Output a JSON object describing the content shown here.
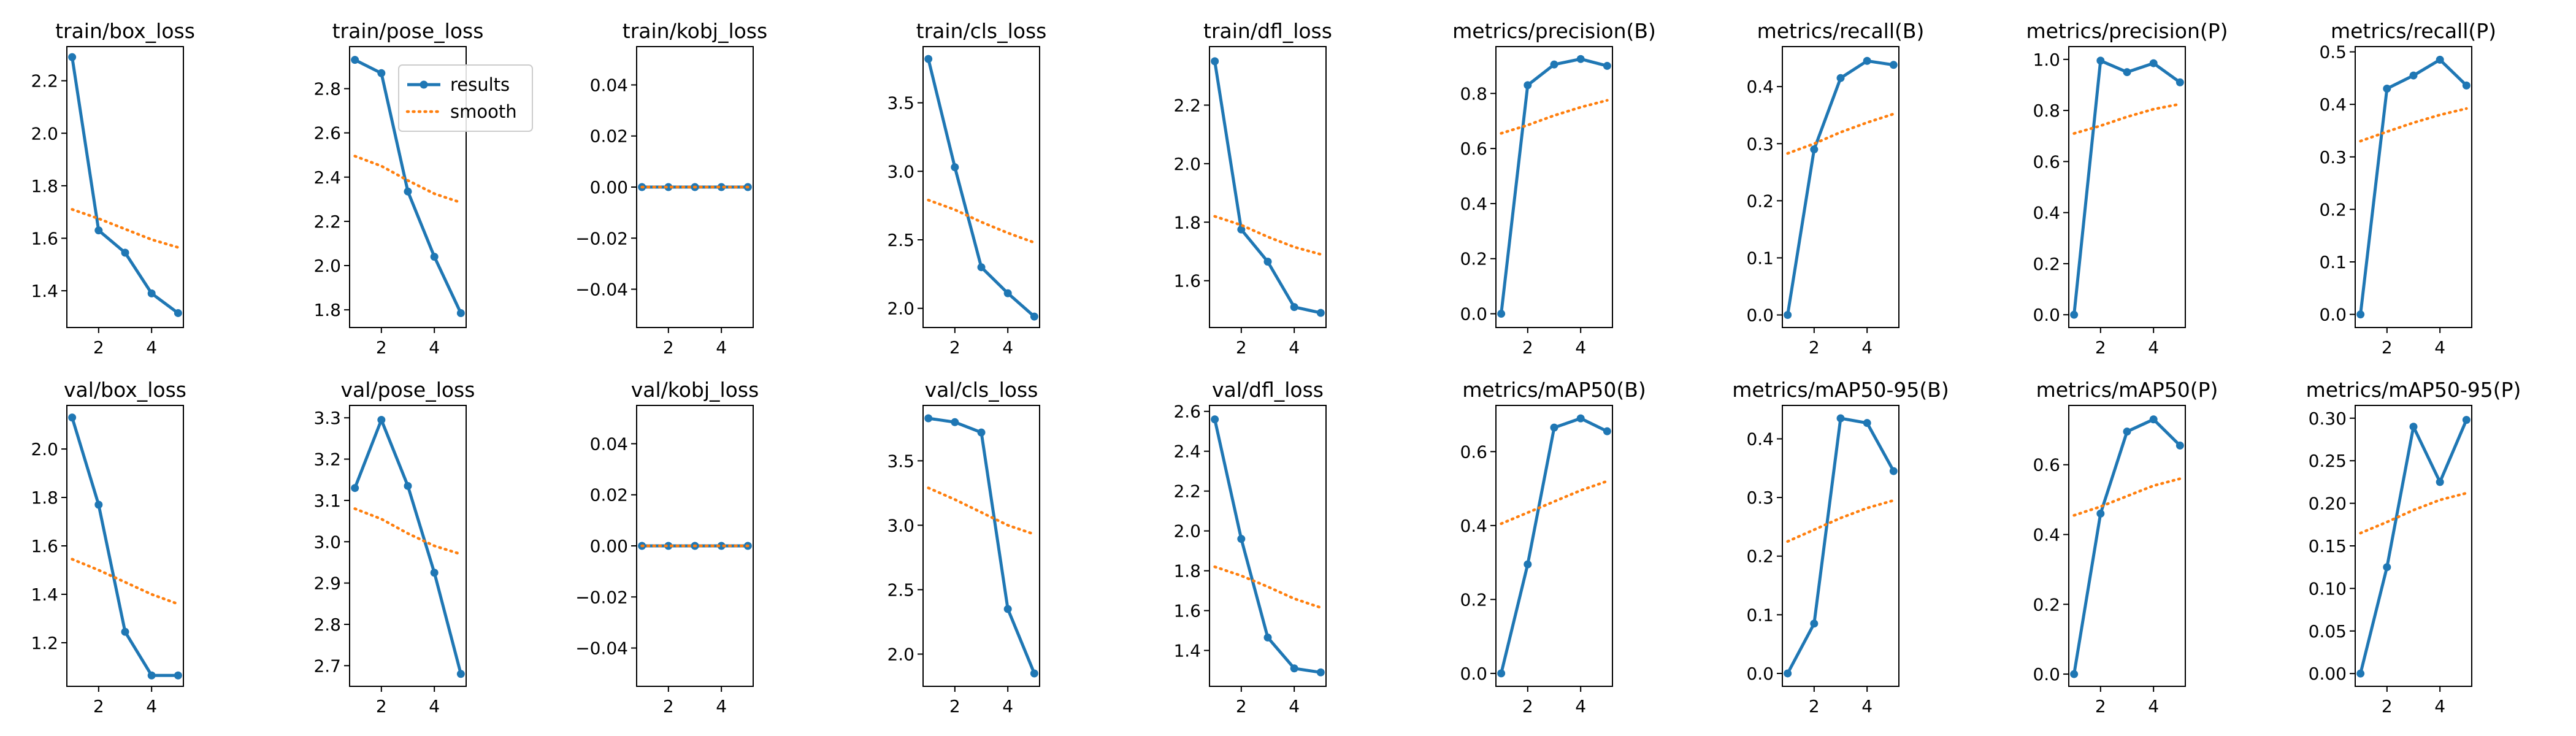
{
  "legend": {
    "results": "results",
    "smooth": "smooth",
    "placement": "upper-right",
    "in_panel": 1
  },
  "colors": {
    "results": "#1f77b4",
    "smooth": "#ff7f0e"
  },
  "chart_data": [
    {
      "type": "line",
      "title": "train/box_loss",
      "x": [
        1,
        2,
        3,
        4,
        5
      ],
      "ylim": [
        1.26,
        2.33
      ],
      "xticks": [
        2,
        4
      ],
      "yticks": [
        1.4,
        1.6,
        1.8,
        2.0,
        2.2
      ],
      "ytick_labels": [
        "1.4",
        "1.6",
        "1.8",
        "2.0",
        "2.2"
      ],
      "series": [
        {
          "name": "results",
          "values": [
            2.29,
            1.63,
            1.545,
            1.39,
            1.315
          ]
        },
        {
          "name": "smooth",
          "values": [
            1.71,
            1.675,
            1.635,
            1.595,
            1.565
          ]
        }
      ]
    },
    {
      "type": "line",
      "title": "train/pose_loss",
      "x": [
        1,
        2,
        3,
        4,
        5
      ],
      "ylim": [
        1.72,
        2.99
      ],
      "xticks": [
        2,
        4
      ],
      "yticks": [
        1.8,
        2.0,
        2.2,
        2.4,
        2.6,
        2.8
      ],
      "ytick_labels": [
        "1.8",
        "2.0",
        "2.2",
        "2.4",
        "2.6",
        "2.8"
      ],
      "series": [
        {
          "name": "results",
          "values": [
            2.93,
            2.87,
            2.335,
            2.04,
            1.785
          ]
        },
        {
          "name": "smooth",
          "values": [
            2.495,
            2.45,
            2.385,
            2.325,
            2.285
          ]
        }
      ]
    },
    {
      "type": "line",
      "title": "train/kobj_loss",
      "x": [
        1,
        2,
        3,
        4,
        5
      ],
      "ylim": [
        -0.055,
        0.055
      ],
      "xticks": [
        2,
        4
      ],
      "yticks": [
        -0.04,
        -0.02,
        0.0,
        0.02,
        0.04
      ],
      "ytick_labels": [
        "−0.04",
        "−0.02",
        "0.00",
        "0.02",
        "0.04"
      ],
      "series": [
        {
          "name": "results",
          "values": [
            0,
            0,
            0,
            0,
            0
          ]
        },
        {
          "name": "smooth",
          "values": [
            0,
            0,
            0,
            0,
            0
          ]
        }
      ]
    },
    {
      "type": "line",
      "title": "train/cls_loss",
      "x": [
        1,
        2,
        3,
        4,
        5
      ],
      "ylim": [
        1.86,
        3.91
      ],
      "xticks": [
        2,
        4
      ],
      "yticks": [
        2.0,
        2.5,
        3.0,
        3.5
      ],
      "ytick_labels": [
        "2.0",
        "2.5",
        "3.0",
        "3.5"
      ],
      "series": [
        {
          "name": "results",
          "values": [
            3.82,
            3.03,
            2.3,
            2.11,
            1.94
          ]
        },
        {
          "name": "smooth",
          "values": [
            2.79,
            2.72,
            2.63,
            2.55,
            2.48
          ]
        }
      ]
    },
    {
      "type": "line",
      "title": "train/dfl_loss",
      "x": [
        1,
        2,
        3,
        4,
        5
      ],
      "ylim": [
        1.44,
        2.4
      ],
      "xticks": [
        2,
        4
      ],
      "yticks": [
        1.6,
        1.8,
        2.0,
        2.2
      ],
      "ytick_labels": [
        "1.6",
        "1.8",
        "2.0",
        "2.2"
      ],
      "series": [
        {
          "name": "results",
          "values": [
            2.35,
            1.775,
            1.665,
            1.51,
            1.49
          ]
        },
        {
          "name": "smooth",
          "values": [
            1.82,
            1.79,
            1.75,
            1.715,
            1.69
          ]
        }
      ]
    },
    {
      "type": "line",
      "title": "metrics/precision(B)",
      "x": [
        1,
        2,
        3,
        4,
        5
      ],
      "ylim": [
        -0.05,
        0.97
      ],
      "xticks": [
        2,
        4
      ],
      "yticks": [
        0.0,
        0.2,
        0.4,
        0.6,
        0.8
      ],
      "ytick_labels": [
        "0.0",
        "0.2",
        "0.4",
        "0.6",
        "0.8"
      ],
      "series": [
        {
          "name": "results",
          "values": [
            0.0,
            0.83,
            0.905,
            0.925,
            0.9
          ]
        },
        {
          "name": "smooth",
          "values": [
            0.655,
            0.685,
            0.72,
            0.75,
            0.775
          ]
        }
      ]
    },
    {
      "type": "line",
      "title": "metrics/recall(B)",
      "x": [
        1,
        2,
        3,
        4,
        5
      ],
      "ylim": [
        -0.022,
        0.47
      ],
      "xticks": [
        2,
        4
      ],
      "yticks": [
        0.0,
        0.1,
        0.2,
        0.3,
        0.4
      ],
      "ytick_labels": [
        "0.0",
        "0.1",
        "0.2",
        "0.3",
        "0.4"
      ],
      "series": [
        {
          "name": "results",
          "values": [
            0.0,
            0.29,
            0.415,
            0.445,
            0.438
          ]
        },
        {
          "name": "smooth",
          "values": [
            0.283,
            0.3,
            0.32,
            0.337,
            0.352
          ]
        }
      ]
    },
    {
      "type": "line",
      "title": "metrics/precision(P)",
      "x": [
        1,
        2,
        3,
        4,
        5
      ],
      "ylim": [
        -0.05,
        1.05
      ],
      "xticks": [
        2,
        4
      ],
      "yticks": [
        0.0,
        0.2,
        0.4,
        0.6,
        0.8,
        1.0
      ],
      "ytick_labels": [
        "0.0",
        "0.2",
        "0.4",
        "0.6",
        "0.8",
        "1.0"
      ],
      "series": [
        {
          "name": "results",
          "values": [
            0.0,
            0.995,
            0.95,
            0.985,
            0.91
          ]
        },
        {
          "name": "smooth",
          "values": [
            0.71,
            0.74,
            0.775,
            0.805,
            0.825
          ]
        }
      ]
    },
    {
      "type": "line",
      "title": "metrics/recall(P)",
      "x": [
        1,
        2,
        3,
        4,
        5
      ],
      "ylim": [
        -0.025,
        0.51
      ],
      "xticks": [
        2,
        4
      ],
      "yticks": [
        0.0,
        0.1,
        0.2,
        0.3,
        0.4,
        0.5
      ],
      "ytick_labels": [
        "0.0",
        "0.1",
        "0.2",
        "0.3",
        "0.4",
        "0.5"
      ],
      "series": [
        {
          "name": "results",
          "values": [
            0.0,
            0.43,
            0.455,
            0.485,
            0.436
          ]
        },
        {
          "name": "smooth",
          "values": [
            0.33,
            0.348,
            0.365,
            0.38,
            0.392
          ]
        }
      ]
    },
    {
      "type": "line",
      "title": "val/box_loss",
      "x": [
        1,
        2,
        3,
        4,
        5
      ],
      "ylim": [
        1.02,
        2.18
      ],
      "xticks": [
        2,
        4
      ],
      "yticks": [
        1.2,
        1.4,
        1.6,
        1.8,
        2.0
      ],
      "ytick_labels": [
        "1.2",
        "1.4",
        "1.6",
        "1.8",
        "2.0"
      ],
      "series": [
        {
          "name": "results",
          "values": [
            2.13,
            1.77,
            1.245,
            1.065,
            1.065
          ]
        },
        {
          "name": "smooth",
          "values": [
            1.545,
            1.5,
            1.45,
            1.4,
            1.36
          ]
        }
      ]
    },
    {
      "type": "line",
      "title": "val/pose_loss",
      "x": [
        1,
        2,
        3,
        4,
        5
      ],
      "ylim": [
        2.65,
        3.33
      ],
      "xticks": [
        2,
        4
      ],
      "yticks": [
        2.7,
        2.8,
        2.9,
        3.0,
        3.1,
        3.2,
        3.3
      ],
      "ytick_labels": [
        "2.7",
        "2.8",
        "2.9",
        "3.0",
        "3.1",
        "3.2",
        "3.3"
      ],
      "series": [
        {
          "name": "results",
          "values": [
            3.13,
            3.295,
            3.135,
            2.925,
            2.68
          ]
        },
        {
          "name": "smooth",
          "values": [
            3.08,
            3.055,
            3.02,
            2.99,
            2.97
          ]
        }
      ]
    },
    {
      "type": "line",
      "title": "val/kobj_loss",
      "x": [
        1,
        2,
        3,
        4,
        5
      ],
      "ylim": [
        -0.055,
        0.055
      ],
      "xticks": [
        2,
        4
      ],
      "yticks": [
        -0.04,
        -0.02,
        0.0,
        0.02,
        0.04
      ],
      "ytick_labels": [
        "−0.04",
        "−0.02",
        "0.00",
        "0.02",
        "0.04"
      ],
      "series": [
        {
          "name": "results",
          "values": [
            0,
            0,
            0,
            0,
            0
          ]
        },
        {
          "name": "smooth",
          "values": [
            0,
            0,
            0,
            0,
            0
          ]
        }
      ]
    },
    {
      "type": "line",
      "title": "val/cls_loss",
      "x": [
        1,
        2,
        3,
        4,
        5
      ],
      "ylim": [
        1.75,
        3.93
      ],
      "xticks": [
        2,
        4
      ],
      "yticks": [
        2.0,
        2.5,
        3.0,
        3.5
      ],
      "ytick_labels": [
        "2.0",
        "2.5",
        "3.0",
        "3.5"
      ],
      "series": [
        {
          "name": "results",
          "values": [
            3.83,
            3.8,
            3.72,
            2.35,
            1.85
          ]
        },
        {
          "name": "smooth",
          "values": [
            3.29,
            3.2,
            3.1,
            3.0,
            2.93
          ]
        }
      ]
    },
    {
      "type": "line",
      "title": "val/dfl_loss",
      "x": [
        1,
        2,
        3,
        4,
        5
      ],
      "ylim": [
        1.22,
        2.63
      ],
      "xticks": [
        2,
        4
      ],
      "yticks": [
        1.4,
        1.6,
        1.8,
        2.0,
        2.2,
        2.4,
        2.6
      ],
      "ytick_labels": [
        "1.4",
        "1.6",
        "1.8",
        "2.0",
        "2.2",
        "2.4",
        "2.6"
      ],
      "series": [
        {
          "name": "results",
          "values": [
            2.56,
            1.96,
            1.465,
            1.31,
            1.29
          ]
        },
        {
          "name": "smooth",
          "values": [
            1.82,
            1.775,
            1.72,
            1.66,
            1.615
          ]
        }
      ]
    },
    {
      "type": "line",
      "title": "metrics/mAP50(B)",
      "x": [
        1,
        2,
        3,
        4,
        5
      ],
      "ylim": [
        -0.035,
        0.725
      ],
      "xticks": [
        2,
        4
      ],
      "yticks": [
        0.0,
        0.2,
        0.4,
        0.6
      ],
      "ytick_labels": [
        "0.0",
        "0.2",
        "0.4",
        "0.6"
      ],
      "series": [
        {
          "name": "results",
          "values": [
            0.0,
            0.295,
            0.665,
            0.69,
            0.655
          ]
        },
        {
          "name": "smooth",
          "values": [
            0.405,
            0.435,
            0.465,
            0.495,
            0.52
          ]
        }
      ]
    },
    {
      "type": "line",
      "title": "metrics/mAP50-95(B)",
      "x": [
        1,
        2,
        3,
        4,
        5
      ],
      "ylim": [
        -0.022,
        0.457
      ],
      "xticks": [
        2,
        4
      ],
      "yticks": [
        0.0,
        0.1,
        0.2,
        0.3,
        0.4
      ],
      "ytick_labels": [
        "0.0",
        "0.1",
        "0.2",
        "0.3",
        "0.4"
      ],
      "series": [
        {
          "name": "results",
          "values": [
            0.0,
            0.085,
            0.435,
            0.427,
            0.345
          ]
        },
        {
          "name": "smooth",
          "values": [
            0.225,
            0.245,
            0.265,
            0.282,
            0.295
          ]
        }
      ]
    },
    {
      "type": "line",
      "title": "metrics/mAP50(P)",
      "x": [
        1,
        2,
        3,
        4,
        5
      ],
      "ylim": [
        -0.035,
        0.77
      ],
      "xticks": [
        2,
        4
      ],
      "yticks": [
        0.0,
        0.2,
        0.4,
        0.6
      ],
      "ytick_labels": [
        "0.0",
        "0.2",
        "0.4",
        "0.6"
      ],
      "series": [
        {
          "name": "results",
          "values": [
            0.0,
            0.46,
            0.695,
            0.73,
            0.655
          ]
        },
        {
          "name": "smooth",
          "values": [
            0.455,
            0.48,
            0.51,
            0.54,
            0.56
          ]
        }
      ]
    },
    {
      "type": "line",
      "title": "metrics/mAP50-95(P)",
      "x": [
        1,
        2,
        3,
        4,
        5
      ],
      "ylim": [
        -0.015,
        0.315
      ],
      "xticks": [
        2,
        4
      ],
      "yticks": [
        0.0,
        0.05,
        0.1,
        0.15,
        0.2,
        0.25,
        0.3
      ],
      "ytick_labels": [
        "0.00",
        "0.05",
        "0.10",
        "0.15",
        "0.20",
        "0.25",
        "0.30"
      ],
      "series": [
        {
          "name": "results",
          "values": [
            0.0,
            0.125,
            0.29,
            0.225,
            0.298
          ]
        },
        {
          "name": "smooth",
          "values": [
            0.165,
            0.178,
            0.192,
            0.204,
            0.212
          ]
        }
      ]
    }
  ]
}
